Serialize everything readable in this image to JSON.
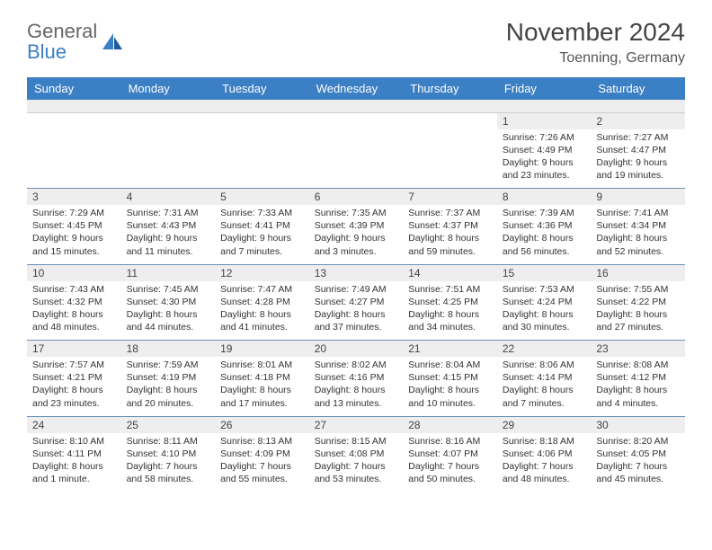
{
  "logo": {
    "text_gray": "General",
    "text_blue": "Blue",
    "icon_color_1": "#3b7fc4",
    "icon_color_2": "#1f5a99"
  },
  "header": {
    "month_title": "November 2024",
    "location": "Toenning, Germany"
  },
  "colors": {
    "header_bg": "#3b7fc4",
    "header_text": "#ffffff",
    "daynum_bg": "#eeeeee",
    "cell_border": "#6a8fb5",
    "text": "#333333"
  },
  "day_labels": [
    "Sunday",
    "Monday",
    "Tuesday",
    "Wednesday",
    "Thursday",
    "Friday",
    "Saturday"
  ],
  "weeks": [
    [
      null,
      null,
      null,
      null,
      null,
      {
        "n": "1",
        "sr": "7:26 AM",
        "ss": "4:49 PM",
        "dl": "9 hours and 23 minutes."
      },
      {
        "n": "2",
        "sr": "7:27 AM",
        "ss": "4:47 PM",
        "dl": "9 hours and 19 minutes."
      }
    ],
    [
      {
        "n": "3",
        "sr": "7:29 AM",
        "ss": "4:45 PM",
        "dl": "9 hours and 15 minutes."
      },
      {
        "n": "4",
        "sr": "7:31 AM",
        "ss": "4:43 PM",
        "dl": "9 hours and 11 minutes."
      },
      {
        "n": "5",
        "sr": "7:33 AM",
        "ss": "4:41 PM",
        "dl": "9 hours and 7 minutes."
      },
      {
        "n": "6",
        "sr": "7:35 AM",
        "ss": "4:39 PM",
        "dl": "9 hours and 3 minutes."
      },
      {
        "n": "7",
        "sr": "7:37 AM",
        "ss": "4:37 PM",
        "dl": "8 hours and 59 minutes."
      },
      {
        "n": "8",
        "sr": "7:39 AM",
        "ss": "4:36 PM",
        "dl": "8 hours and 56 minutes."
      },
      {
        "n": "9",
        "sr": "7:41 AM",
        "ss": "4:34 PM",
        "dl": "8 hours and 52 minutes."
      }
    ],
    [
      {
        "n": "10",
        "sr": "7:43 AM",
        "ss": "4:32 PM",
        "dl": "8 hours and 48 minutes."
      },
      {
        "n": "11",
        "sr": "7:45 AM",
        "ss": "4:30 PM",
        "dl": "8 hours and 44 minutes."
      },
      {
        "n": "12",
        "sr": "7:47 AM",
        "ss": "4:28 PM",
        "dl": "8 hours and 41 minutes."
      },
      {
        "n": "13",
        "sr": "7:49 AM",
        "ss": "4:27 PM",
        "dl": "8 hours and 37 minutes."
      },
      {
        "n": "14",
        "sr": "7:51 AM",
        "ss": "4:25 PM",
        "dl": "8 hours and 34 minutes."
      },
      {
        "n": "15",
        "sr": "7:53 AM",
        "ss": "4:24 PM",
        "dl": "8 hours and 30 minutes."
      },
      {
        "n": "16",
        "sr": "7:55 AM",
        "ss": "4:22 PM",
        "dl": "8 hours and 27 minutes."
      }
    ],
    [
      {
        "n": "17",
        "sr": "7:57 AM",
        "ss": "4:21 PM",
        "dl": "8 hours and 23 minutes."
      },
      {
        "n": "18",
        "sr": "7:59 AM",
        "ss": "4:19 PM",
        "dl": "8 hours and 20 minutes."
      },
      {
        "n": "19",
        "sr": "8:01 AM",
        "ss": "4:18 PM",
        "dl": "8 hours and 17 minutes."
      },
      {
        "n": "20",
        "sr": "8:02 AM",
        "ss": "4:16 PM",
        "dl": "8 hours and 13 minutes."
      },
      {
        "n": "21",
        "sr": "8:04 AM",
        "ss": "4:15 PM",
        "dl": "8 hours and 10 minutes."
      },
      {
        "n": "22",
        "sr": "8:06 AM",
        "ss": "4:14 PM",
        "dl": "8 hours and 7 minutes."
      },
      {
        "n": "23",
        "sr": "8:08 AM",
        "ss": "4:12 PM",
        "dl": "8 hours and 4 minutes."
      }
    ],
    [
      {
        "n": "24",
        "sr": "8:10 AM",
        "ss": "4:11 PM",
        "dl": "8 hours and 1 minute."
      },
      {
        "n": "25",
        "sr": "8:11 AM",
        "ss": "4:10 PM",
        "dl": "7 hours and 58 minutes."
      },
      {
        "n": "26",
        "sr": "8:13 AM",
        "ss": "4:09 PM",
        "dl": "7 hours and 55 minutes."
      },
      {
        "n": "27",
        "sr": "8:15 AM",
        "ss": "4:08 PM",
        "dl": "7 hours and 53 minutes."
      },
      {
        "n": "28",
        "sr": "8:16 AM",
        "ss": "4:07 PM",
        "dl": "7 hours and 50 minutes."
      },
      {
        "n": "29",
        "sr": "8:18 AM",
        "ss": "4:06 PM",
        "dl": "7 hours and 48 minutes."
      },
      {
        "n": "30",
        "sr": "8:20 AM",
        "ss": "4:05 PM",
        "dl": "7 hours and 45 minutes."
      }
    ]
  ],
  "labels": {
    "sunrise": "Sunrise:",
    "sunset": "Sunset:",
    "daylight": "Daylight:"
  }
}
